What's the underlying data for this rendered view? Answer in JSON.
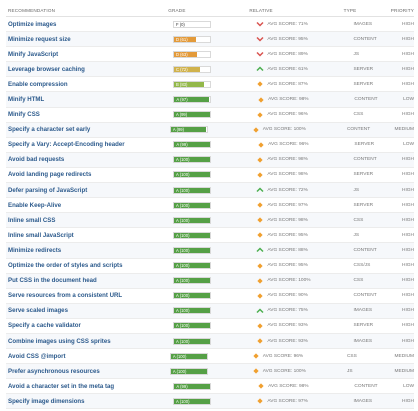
{
  "headers": {
    "recommendation": "RECOMMENDATION",
    "grade": "GRADE",
    "relative": "RELATIVE",
    "type": "TYPE",
    "priority": "PRIORITY"
  },
  "colors": {
    "grade_F": "#ffffff",
    "grade_D": "#e39a3a",
    "grade_C": "#d0b24c",
    "grade_B": "#93b84a",
    "grade_A": "#55a046",
    "worse": "#d9534f",
    "better": "#4caf50",
    "average": "#f0a030"
  },
  "rows": [
    {
      "name": "Optimize images",
      "grade": "F (0)",
      "score": 0,
      "letter": "F",
      "relative": "AVG SCORE: 71%",
      "trend": "worse",
      "type": "IMAGES",
      "priority": "HIGH"
    },
    {
      "name": "Minimize request size",
      "grade": "D (61)",
      "score": 61,
      "letter": "D",
      "relative": "AVG SCORE: 95%",
      "trend": "worse",
      "type": "CONTENT",
      "priority": "HIGH"
    },
    {
      "name": "Minify JavaScript",
      "grade": "D (63)",
      "score": 63,
      "letter": "D",
      "relative": "AVG SCORE: 89%",
      "trend": "worse",
      "type": "JS",
      "priority": "HIGH"
    },
    {
      "name": "Leverage browser caching",
      "grade": "C (72)",
      "score": 72,
      "letter": "C",
      "relative": "AVG SCORE: 61%",
      "trend": "better",
      "type": "SERVER",
      "priority": "HIGH"
    },
    {
      "name": "Enable compression",
      "grade": "B (83)",
      "score": 83,
      "letter": "B",
      "relative": "AVG SCORE: 87%",
      "trend": "average",
      "type": "SERVER",
      "priority": "HIGH"
    },
    {
      "name": "Minify HTML",
      "grade": "A (97)",
      "score": 97,
      "letter": "A",
      "relative": "AVG SCORE: 98%",
      "trend": "average",
      "type": "CONTENT",
      "priority": "LOW"
    },
    {
      "name": "Minify CSS",
      "grade": "A (99)",
      "score": 99,
      "letter": "A",
      "relative": "AVG SCORE: 96%",
      "trend": "average",
      "type": "CSS",
      "priority": "HIGH"
    },
    {
      "name": "Specify a character set early",
      "grade": "A (99)",
      "score": 99,
      "letter": "A",
      "relative": "AVG SCORE: 100%",
      "trend": "average",
      "type": "CONTENT",
      "priority": "MEDIUM"
    },
    {
      "name": "Specify a Vary: Accept-Encoding header",
      "grade": "A (99)",
      "score": 99,
      "letter": "A",
      "relative": "AVG SCORE: 96%",
      "trend": "average",
      "type": "SERVER",
      "priority": "LOW"
    },
    {
      "name": "Avoid bad requests",
      "grade": "A (100)",
      "score": 100,
      "letter": "A",
      "relative": "AVG SCORE: 98%",
      "trend": "average",
      "type": "CONTENT",
      "priority": "HIGH"
    },
    {
      "name": "Avoid landing page redirects",
      "grade": "A (100)",
      "score": 100,
      "letter": "A",
      "relative": "AVG SCORE: 98%",
      "trend": "average",
      "type": "SERVER",
      "priority": "HIGH"
    },
    {
      "name": "Defer parsing of JavaScript",
      "grade": "A (100)",
      "score": 100,
      "letter": "A",
      "relative": "AVG SCORE: 72%",
      "trend": "better",
      "type": "JS",
      "priority": "HIGH"
    },
    {
      "name": "Enable Keep-Alive",
      "grade": "A (100)",
      "score": 100,
      "letter": "A",
      "relative": "AVG SCORE: 97%",
      "trend": "average",
      "type": "SERVER",
      "priority": "HIGH"
    },
    {
      "name": "Inline small CSS",
      "grade": "A (100)",
      "score": 100,
      "letter": "A",
      "relative": "AVG SCORE: 98%",
      "trend": "average",
      "type": "CSS",
      "priority": "HIGH"
    },
    {
      "name": "Inline small JavaScript",
      "grade": "A (100)",
      "score": 100,
      "letter": "A",
      "relative": "AVG SCORE: 95%",
      "trend": "average",
      "type": "JS",
      "priority": "HIGH"
    },
    {
      "name": "Minimize redirects",
      "grade": "A (100)",
      "score": 100,
      "letter": "A",
      "relative": "AVG SCORE: 88%",
      "trend": "better",
      "type": "CONTENT",
      "priority": "HIGH"
    },
    {
      "name": "Optimize the order of styles and scripts",
      "grade": "A (100)",
      "score": 100,
      "letter": "A",
      "relative": "AVG SCORE: 95%",
      "trend": "average",
      "type": "CSS/JS",
      "priority": "HIGH"
    },
    {
      "name": "Put CSS in the document head",
      "grade": "A (100)",
      "score": 100,
      "letter": "A",
      "relative": "AVG SCORE: 100%",
      "trend": "average",
      "type": "CSS",
      "priority": "HIGH"
    },
    {
      "name": "Serve resources from a consistent URL",
      "grade": "A (100)",
      "score": 100,
      "letter": "A",
      "relative": "AVG SCORE: 90%",
      "trend": "average",
      "type": "CONTENT",
      "priority": "HIGH"
    },
    {
      "name": "Serve scaled images",
      "grade": "A (100)",
      "score": 100,
      "letter": "A",
      "relative": "AVG SCORE: 75%",
      "trend": "better",
      "type": "IMAGES",
      "priority": "HIGH"
    },
    {
      "name": "Specify a cache validator",
      "grade": "A (100)",
      "score": 100,
      "letter": "A",
      "relative": "AVG SCORE: 93%",
      "trend": "average",
      "type": "SERVER",
      "priority": "HIGH"
    },
    {
      "name": "Combine images using CSS sprites",
      "grade": "A (100)",
      "score": 100,
      "letter": "A",
      "relative": "AVG SCORE: 93%",
      "trend": "average",
      "type": "IMAGES",
      "priority": "HIGH"
    },
    {
      "name": "Avoid CSS @import",
      "grade": "A (100)",
      "score": 100,
      "letter": "A",
      "relative": "AVG SCORE: 96%",
      "trend": "average",
      "type": "CSS",
      "priority": "MEDIUM"
    },
    {
      "name": "Prefer asynchronous resources",
      "grade": "A (100)",
      "score": 100,
      "letter": "A",
      "relative": "AVG SCORE: 100%",
      "trend": "average",
      "type": "JS",
      "priority": "MEDIUM"
    },
    {
      "name": "Avoid a character set in the meta tag",
      "grade": "A (99)",
      "score": 99,
      "letter": "A",
      "relative": "AVG SCORE: 98%",
      "trend": "average",
      "type": "CONTENT",
      "priority": "LOW"
    },
    {
      "name": "Specify image dimensions",
      "grade": "A (100)",
      "score": 100,
      "letter": "A",
      "relative": "AVG SCORE: 97%",
      "trend": "average",
      "type": "IMAGES",
      "priority": "HIGH"
    }
  ]
}
